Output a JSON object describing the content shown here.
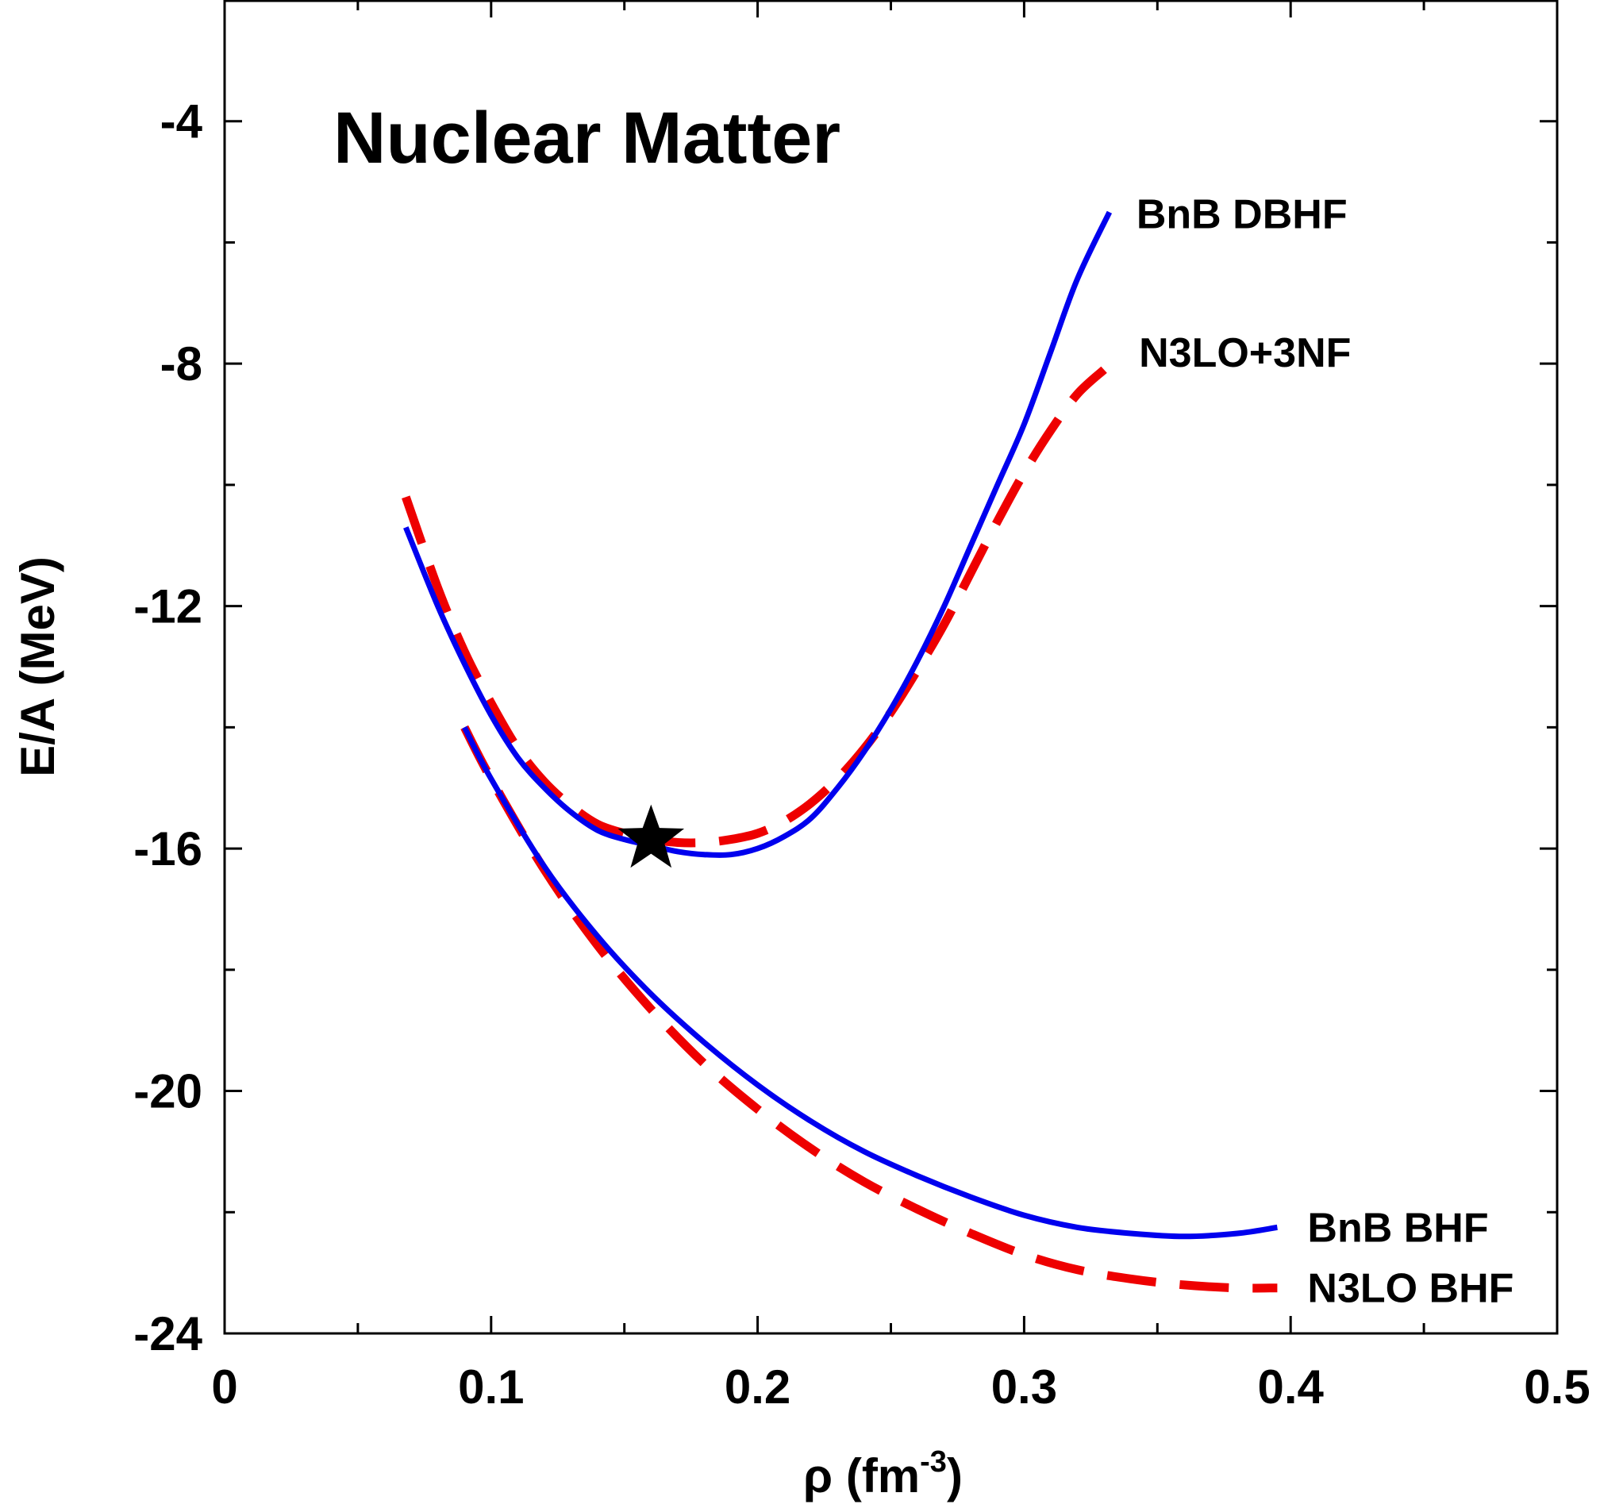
{
  "chart_data": {
    "type": "line",
    "title": "Nuclear Matter",
    "xlabel": "ρ (fm",
    "xlabel_sup": "-3",
    "xlabel_end": ")",
    "ylabel": "E/A (MeV)",
    "xlim": [
      0,
      0.5
    ],
    "ylim": [
      -24,
      -2
    ],
    "x_ticks": [
      0,
      0.1,
      0.2,
      0.3,
      0.4,
      0.5
    ],
    "x_tick_labels": [
      "0",
      "0.1",
      "0.2",
      "0.3",
      "0.4",
      "0.5"
    ],
    "y_ticks": [
      -4,
      -8,
      -12,
      -16,
      -20,
      -24
    ],
    "y_tick_labels": [
      "-4",
      "-8",
      "-12",
      "-16",
      "-20",
      "-24"
    ],
    "grid": false,
    "series": [
      {
        "name": "BnB DBHF",
        "color": "#0000ee",
        "dash": "solid",
        "x": [
          0.068,
          0.08,
          0.09,
          0.1,
          0.11,
          0.12,
          0.13,
          0.14,
          0.15,
          0.16,
          0.17,
          0.18,
          0.19,
          0.2,
          0.21,
          0.22,
          0.23,
          0.24,
          0.25,
          0.26,
          0.27,
          0.28,
          0.29,
          0.3,
          0.31,
          0.32,
          0.332
        ],
        "y": [
          -10.7,
          -12.0,
          -12.95,
          -13.8,
          -14.5,
          -15.0,
          -15.4,
          -15.7,
          -15.85,
          -15.95,
          -16.05,
          -16.1,
          -16.1,
          -16.0,
          -15.8,
          -15.5,
          -15.0,
          -14.4,
          -13.7,
          -12.9,
          -12.0,
          -11.0,
          -10.0,
          -9.0,
          -7.8,
          -6.6,
          -5.5
        ]
      },
      {
        "name": "N3LO+3NF",
        "color": "#ee0000",
        "dash": "dashed",
        "x": [
          0.068,
          0.08,
          0.09,
          0.1,
          0.11,
          0.12,
          0.13,
          0.14,
          0.15,
          0.16,
          0.17,
          0.18,
          0.19,
          0.2,
          0.21,
          0.22,
          0.23,
          0.24,
          0.25,
          0.26,
          0.27,
          0.28,
          0.29,
          0.3,
          0.31,
          0.32,
          0.33
        ],
        "y": [
          -10.2,
          -11.7,
          -12.75,
          -13.6,
          -14.35,
          -14.9,
          -15.3,
          -15.6,
          -15.75,
          -15.85,
          -15.9,
          -15.9,
          -15.85,
          -15.75,
          -15.55,
          -15.25,
          -14.85,
          -14.35,
          -13.75,
          -13.05,
          -12.3,
          -11.45,
          -10.6,
          -9.8,
          -9.1,
          -8.5,
          -8.1
        ]
      },
      {
        "name": "BnB BHF",
        "color": "#0000ee",
        "dash": "solid",
        "x": [
          0.09,
          0.1,
          0.12,
          0.14,
          0.16,
          0.18,
          0.2,
          0.22,
          0.24,
          0.26,
          0.28,
          0.3,
          0.32,
          0.34,
          0.36,
          0.38,
          0.395
        ],
        "y": [
          -14.0,
          -14.85,
          -16.3,
          -17.45,
          -18.4,
          -19.2,
          -19.9,
          -20.5,
          -21.0,
          -21.4,
          -21.75,
          -22.05,
          -22.25,
          -22.35,
          -22.4,
          -22.35,
          -22.25
        ]
      },
      {
        "name": "N3LO BHF",
        "color": "#ee0000",
        "dash": "dashed",
        "x": [
          0.09,
          0.1,
          0.12,
          0.14,
          0.16,
          0.18,
          0.2,
          0.22,
          0.24,
          0.26,
          0.28,
          0.3,
          0.32,
          0.34,
          0.36,
          0.38,
          0.395
        ],
        "y": [
          -14.0,
          -14.85,
          -16.35,
          -17.6,
          -18.65,
          -19.55,
          -20.3,
          -20.95,
          -21.5,
          -21.95,
          -22.35,
          -22.7,
          -22.95,
          -23.1,
          -23.2,
          -23.25,
          -23.25
        ]
      }
    ],
    "marker": {
      "symbol": "star",
      "x": 0.16,
      "y": -15.85,
      "color": "#000000"
    }
  }
}
